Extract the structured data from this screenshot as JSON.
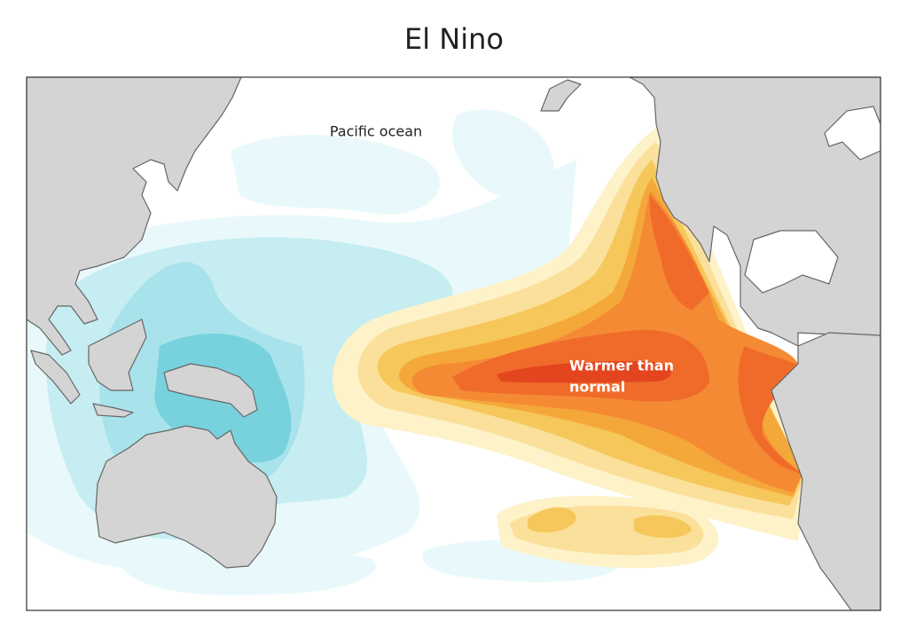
{
  "title": "El Nino",
  "labels": {
    "ocean": "Pacific ocean",
    "warm_line1": "Warmer than",
    "warm_line2": "normal"
  }
}
